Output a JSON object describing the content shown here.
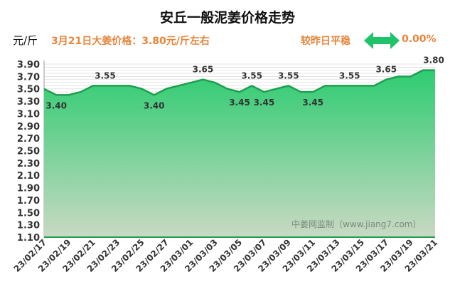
{
  "header": {
    "title": "安丘一般泥姜价格走势",
    "unit": "元/斤",
    "headline": "3月21日大姜价格：3.80元/斤左右",
    "compare_label": "较昨日平稳",
    "change_icon": "double-arrow-icon",
    "change_pct": "0.00%"
  },
  "watermark": "中姜网监制（www.jiang7.com）",
  "colors": {
    "line": "#1e9e4e",
    "fill_top": "#2ecc71",
    "fill_bottom": "#c9d9c3",
    "label": "#333333",
    "accent": "#e8843a"
  },
  "chart_data": {
    "type": "area",
    "title": "安丘一般泥姜价格走势",
    "ylabel": "元/斤",
    "ylim": [
      1.1,
      3.9
    ],
    "yticks": [
      "3.90",
      "3.70",
      "3.50",
      "3.30",
      "3.10",
      "2.90",
      "2.70",
      "2.50",
      "2.30",
      "2.10",
      "1.90",
      "1.70",
      "1.50",
      "1.30",
      "1.10"
    ],
    "grid": true,
    "x": [
      "23/02/17",
      "23/02/18",
      "23/02/19",
      "23/02/20",
      "23/02/21",
      "23/02/22",
      "23/02/23",
      "23/02/24",
      "23/02/25",
      "23/02/26",
      "23/02/27",
      "23/02/28",
      "23/03/01",
      "23/03/02",
      "23/03/03",
      "23/03/04",
      "23/03/05",
      "23/03/06",
      "23/03/07",
      "23/03/08",
      "23/03/09",
      "23/03/10",
      "23/03/11",
      "23/03/12",
      "23/03/13",
      "23/03/14",
      "23/03/15",
      "23/03/16",
      "23/03/17",
      "23/03/18",
      "23/03/19",
      "23/03/20",
      "23/03/21"
    ],
    "xticks": [
      "23/02/17",
      "23/02/19",
      "23/02/21",
      "23/02/23",
      "23/02/25",
      "23/02/27",
      "23/03/01",
      "23/03/03",
      "23/03/05",
      "23/03/07",
      "23/03/09",
      "23/03/11",
      "23/03/13",
      "23/03/15",
      "23/03/17",
      "23/03/19",
      "23/03/21"
    ],
    "values": [
      3.5,
      3.4,
      3.4,
      3.45,
      3.55,
      3.55,
      3.55,
      3.55,
      3.5,
      3.4,
      3.5,
      3.55,
      3.6,
      3.65,
      3.6,
      3.5,
      3.45,
      3.55,
      3.45,
      3.5,
      3.55,
      3.45,
      3.45,
      3.55,
      3.55,
      3.55,
      3.55,
      3.55,
      3.65,
      3.7,
      3.7,
      3.8,
      3.8
    ],
    "data_labels": [
      {
        "index": 1,
        "text": "3.40",
        "pos": "below"
      },
      {
        "index": 5,
        "text": "3.55",
        "pos": "above"
      },
      {
        "index": 9,
        "text": "3.40",
        "pos": "below"
      },
      {
        "index": 13,
        "text": "3.65",
        "pos": "above"
      },
      {
        "index": 16,
        "text": "3.45",
        "pos": "below"
      },
      {
        "index": 17,
        "text": "3.55",
        "pos": "above"
      },
      {
        "index": 18,
        "text": "3.45",
        "pos": "below"
      },
      {
        "index": 20,
        "text": "3.55",
        "pos": "above"
      },
      {
        "index": 22,
        "text": "3.45",
        "pos": "below"
      },
      {
        "index": 25,
        "text": "3.55",
        "pos": "above"
      },
      {
        "index": 28,
        "text": "3.65",
        "pos": "above"
      },
      {
        "index": 32,
        "text": "3.80",
        "pos": "above"
      }
    ]
  }
}
